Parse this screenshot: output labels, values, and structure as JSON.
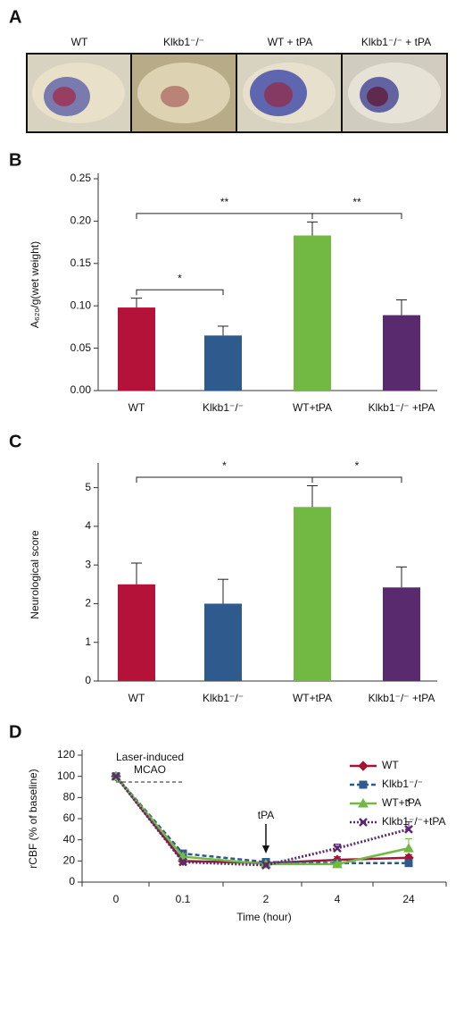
{
  "panel_a": {
    "panel": "A",
    "labels": [
      "WT",
      "Klkb1⁻/⁻",
      "WT + tPA",
      "Klkb1⁻/⁻ + tPA"
    ]
  },
  "chart_data": [
    {
      "type": "bar",
      "panel": "B",
      "ylabel": "A₆₂₀/g(wet weight)",
      "categories": [
        "WT",
        "Klkb1⁻/⁻",
        "WT+tPA",
        "Klkb1⁻/⁻ +tPA"
      ],
      "values": [
        0.098,
        0.065,
        0.183,
        0.089
      ],
      "errors": [
        0.011,
        0.011,
        0.016,
        0.018
      ],
      "colors": [
        "#b5123a",
        "#2e5a8e",
        "#72b944",
        "#5a2a6e"
      ],
      "ylim": [
        0,
        0.25
      ],
      "yticks": [
        {
          "value": 0,
          "label": "0.00"
        },
        {
          "value": 0.05,
          "label": "0.05"
        },
        {
          "value": 0.1,
          "label": "0.10"
        },
        {
          "value": 0.15,
          "label": "0.15"
        },
        {
          "value": 0.2,
          "label": "0.20"
        },
        {
          "value": 0.25,
          "label": "0.25"
        }
      ],
      "significance": [
        {
          "from": 0,
          "to": 1,
          "label": "*"
        },
        {
          "from": 0,
          "to": 2,
          "label": "**"
        },
        {
          "from": 2,
          "to": 3,
          "label": "**"
        }
      ]
    },
    {
      "type": "bar",
      "panel": "C",
      "ylabel": "Neurological score",
      "categories": [
        "WT",
        "Klkb1⁻/⁻",
        "WT+tPA",
        "Klkb1⁻/⁻ +tPA"
      ],
      "values": [
        2.5,
        2.0,
        4.5,
        2.42
      ],
      "errors": [
        0.55,
        0.63,
        0.55,
        0.53
      ],
      "colors": [
        "#b5123a",
        "#2e5a8e",
        "#72b944",
        "#5a2a6e"
      ],
      "ylim": [
        0,
        5.5
      ],
      "yticks": [
        0,
        1,
        2,
        3,
        4,
        5
      ],
      "significance": [
        {
          "from": 0,
          "to": 2,
          "label": "*"
        },
        {
          "from": 2,
          "to": 3,
          "label": "*"
        }
      ]
    },
    {
      "type": "line",
      "panel": "D",
      "ylabel": "rCBF (% of baseline)",
      "xlabel": "Time (hour)",
      "categories": [
        "0",
        "0.1",
        "2",
        "4",
        "24"
      ],
      "ylim": [
        0,
        120
      ],
      "yticks": [
        0,
        20,
        40,
        60,
        80,
        100,
        120
      ],
      "series": [
        {
          "name": "WT",
          "color": "#a31538",
          "dash": "solid",
          "marker": "diamond",
          "values": [
            100,
            20,
            18,
            21,
            23
          ],
          "errors": [
            0,
            2,
            2,
            3,
            3
          ]
        },
        {
          "name": "Klkb1⁻/⁻",
          "color": "#2e5a8e",
          "dash": "dashed",
          "marker": "square",
          "values": [
            100,
            27,
            19,
            18,
            18
          ],
          "errors": [
            0,
            3,
            2,
            2,
            1
          ]
        },
        {
          "name": "WT+tPA",
          "color": "#72b944",
          "dash": "solid",
          "marker": "triangle",
          "values": [
            100,
            24,
            17,
            17,
            32
          ],
          "errors": [
            0,
            3,
            2,
            2,
            9
          ]
        },
        {
          "name": "Klkb1⁻/⁻+tPA",
          "color": "#5a2a6e",
          "dash": "dotted",
          "marker": "x",
          "values": [
            100,
            19,
            16,
            32,
            50
          ],
          "errors": [
            0,
            2,
            2,
            4,
            7
          ]
        }
      ],
      "annotations": [
        "Laser-induced",
        "MCAO",
        "tPA",
        "*"
      ]
    }
  ]
}
